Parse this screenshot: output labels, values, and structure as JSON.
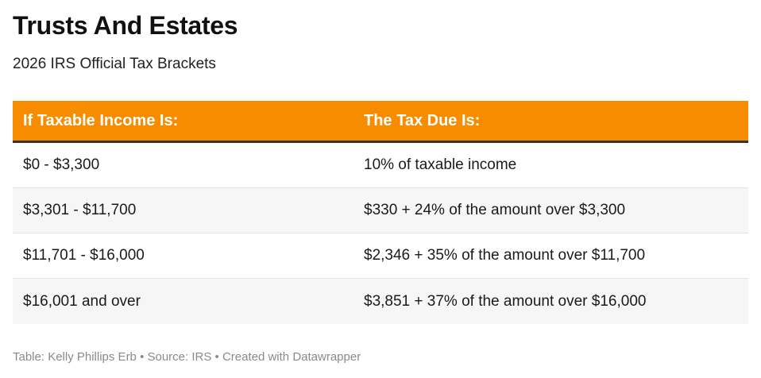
{
  "title": "Trusts And Estates",
  "subtitle": "2026 IRS Official Tax Brackets",
  "table": {
    "headers": [
      "If Taxable Income Is:",
      "The Tax Due Is:"
    ],
    "rows": [
      [
        "$0 - $3,300",
        "10% of taxable income"
      ],
      [
        "$3,301 - $11,700",
        "$330 + 24% of the amount over $3,300"
      ],
      [
        "$11,701 - $16,000",
        "$2,346 + 35% of the amount over $11,700"
      ],
      [
        "$16,001 and over",
        "$3,851 + 37% of the amount over $16,000"
      ]
    ]
  },
  "footer": "Table: Kelly Phillips Erb • Source: IRS • Created with Datawrapper",
  "colors": {
    "header_bg": "#f78c00",
    "header_text": "#ffffff",
    "stripe": "#f6f6f6",
    "footer_text": "#8a8a8a"
  }
}
